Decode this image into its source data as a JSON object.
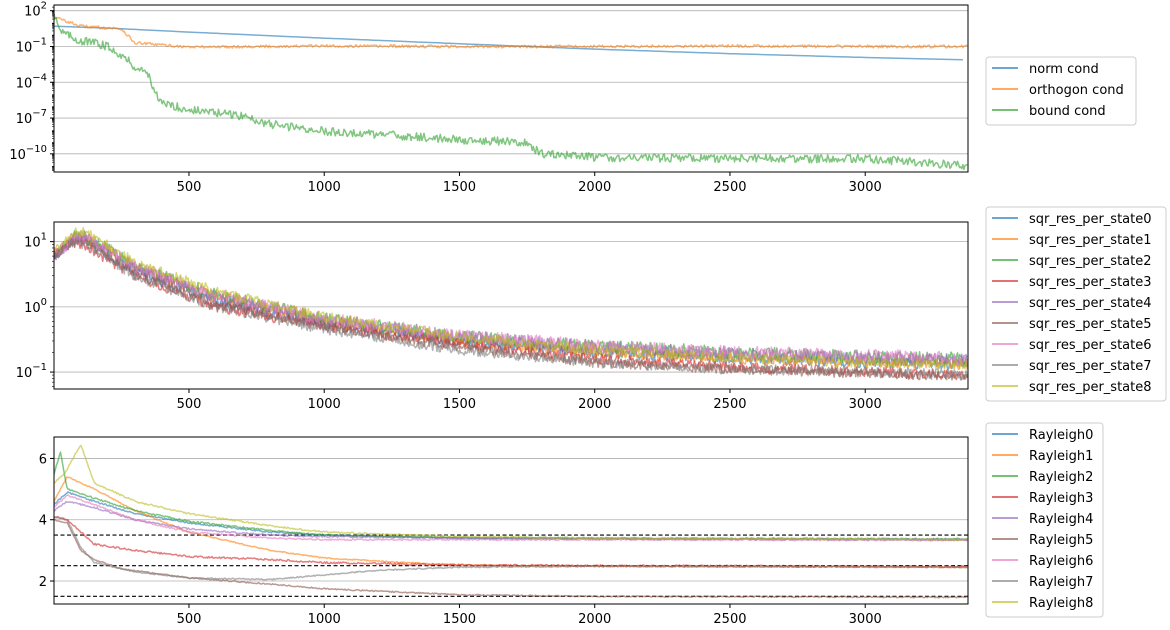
{
  "chart_data": [
    {
      "type": "line",
      "yscale": "log",
      "xlim": [
        1,
        3380
      ],
      "ylim": [
        3e-12,
        300
      ],
      "grid": "y",
      "legend_position": "right",
      "x_ticks": [
        {
          "value": 500,
          "label": "500"
        },
        {
          "value": 1000,
          "label": "1000"
        },
        {
          "value": 1500,
          "label": "1500"
        },
        {
          "value": 2000,
          "label": "2000"
        },
        {
          "value": 2500,
          "label": "2500"
        },
        {
          "value": 3000,
          "label": "3000"
        }
      ],
      "y_ticks": [
        {
          "value": 100,
          "base": "10",
          "exp": "2"
        },
        {
          "value": 0.1,
          "base": "10",
          "exp": "−1"
        },
        {
          "value": 0.0001,
          "base": "10",
          "exp": "−4"
        },
        {
          "value": 1e-07,
          "base": "10",
          "exp": "−7"
        },
        {
          "value": 1e-10,
          "base": "10",
          "exp": "−10"
        }
      ],
      "series": [
        {
          "name": "norm cond",
          "color": "#1f77b4",
          "noise": 0.0,
          "x": [
            1,
            200,
            500,
            1000,
            1500,
            2000,
            2500,
            3000,
            3380
          ],
          "y": [
            5,
            3.5,
            1.6,
            0.5,
            0.17,
            0.06,
            0.025,
            0.012,
            0.0075
          ]
        },
        {
          "name": "orthogon cond",
          "color": "#ff7f0e",
          "noise": 0.12,
          "x": [
            1,
            100,
            250,
            300,
            500,
            1000,
            1500,
            2000,
            2500,
            3000,
            3380
          ],
          "y": [
            30,
            5,
            3,
            0.2,
            0.09,
            0.11,
            0.1,
            0.1,
            0.11,
            0.1,
            0.1
          ]
        },
        {
          "name": "bound cond",
          "color": "#2ca02c",
          "noise": 0.35,
          "x": [
            1,
            25,
            60,
            100,
            150,
            200,
            250,
            300,
            350,
            390,
            500,
            700,
            800,
            1000,
            1300,
            1500,
            1750,
            1800,
            2000,
            2500,
            3000,
            3380
          ],
          "y": [
            80,
            2,
            0.7,
            0.3,
            0.2,
            0.1,
            0.02,
            0.002,
            0.0005,
            2e-06,
            5e-07,
            1.5e-07,
            3e-08,
            8e-09,
            3e-09,
            1.5e-09,
            1e-09,
            1e-10,
            5e-11,
            4e-11,
            4e-11,
            1e-11
          ]
        }
      ]
    },
    {
      "type": "line",
      "yscale": "log",
      "xlim": [
        1,
        3380
      ],
      "ylim": [
        0.055,
        20
      ],
      "grid": "y",
      "legend_position": "right",
      "x_ticks": [
        {
          "value": 500,
          "label": "500"
        },
        {
          "value": 1000,
          "label": "1000"
        },
        {
          "value": 1500,
          "label": "1500"
        },
        {
          "value": 2000,
          "label": "2000"
        },
        {
          "value": 2500,
          "label": "2500"
        },
        {
          "value": 3000,
          "label": "3000"
        }
      ],
      "y_ticks": [
        {
          "value": 10,
          "base": "10",
          "exp": "1"
        },
        {
          "value": 1,
          "base": "10",
          "exp": "0"
        },
        {
          "value": 0.1,
          "base": "10",
          "exp": "−1"
        }
      ],
      "series": [
        {
          "name": "sqr_res_per_state0",
          "color": "#1f77b4",
          "noise": 0.08,
          "x": [
            1,
            80,
            120,
            300,
            600,
            1000,
            1500,
            2000,
            2500,
            3000,
            3380
          ],
          "y": [
            6,
            11,
            10.5,
            3.5,
            1.2,
            0.55,
            0.3,
            0.2,
            0.16,
            0.14,
            0.13
          ]
        },
        {
          "name": "sqr_res_per_state1",
          "color": "#ff7f0e",
          "noise": 0.08,
          "x": [
            1,
            80,
            120,
            300,
            600,
            1000,
            1500,
            2000,
            2500,
            3000,
            3380
          ],
          "y": [
            6,
            12,
            11,
            4,
            1.4,
            0.6,
            0.3,
            0.2,
            0.16,
            0.14,
            0.13
          ]
        },
        {
          "name": "sqr_res_per_state2",
          "color": "#2ca02c",
          "noise": 0.1,
          "x": [
            1,
            80,
            120,
            300,
            600,
            1000,
            1500,
            2000,
            2500,
            3000,
            3380
          ],
          "y": [
            6,
            12,
            12,
            4.2,
            1.5,
            0.65,
            0.35,
            0.25,
            0.2,
            0.17,
            0.16
          ]
        },
        {
          "name": "sqr_res_per_state3",
          "color": "#d62728",
          "noise": 0.08,
          "x": [
            1,
            70,
            120,
            300,
            600,
            1000,
            1500,
            2000,
            2500,
            3000,
            3380
          ],
          "y": [
            6,
            10,
            8.5,
            3,
            1.0,
            0.5,
            0.27,
            0.16,
            0.12,
            0.1,
            0.09
          ]
        },
        {
          "name": "sqr_res_per_state4",
          "color": "#9467bd",
          "noise": 0.1,
          "x": [
            1,
            80,
            120,
            300,
            600,
            1000,
            1500,
            2000,
            2500,
            3000,
            3380
          ],
          "y": [
            6,
            11.5,
            11,
            4,
            1.4,
            0.6,
            0.35,
            0.24,
            0.19,
            0.16,
            0.15
          ]
        },
        {
          "name": "sqr_res_per_state5",
          "color": "#8c564b",
          "noise": 0.07,
          "x": [
            1,
            70,
            120,
            300,
            600,
            1000,
            1500,
            2000,
            2500,
            3000,
            3380
          ],
          "y": [
            6,
            10.5,
            9.5,
            3.2,
            1.1,
            0.5,
            0.24,
            0.14,
            0.11,
            0.095,
            0.085
          ]
        },
        {
          "name": "sqr_res_per_state6",
          "color": "#e377c2",
          "noise": 0.1,
          "x": [
            1,
            80,
            120,
            300,
            600,
            1000,
            1500,
            2000,
            2500,
            3000,
            3380
          ],
          "y": [
            6,
            12,
            11.5,
            4.2,
            1.5,
            0.65,
            0.36,
            0.25,
            0.2,
            0.18,
            0.16
          ]
        },
        {
          "name": "sqr_res_per_state7",
          "color": "#7f7f7f",
          "noise": 0.08,
          "x": [
            1,
            70,
            120,
            300,
            600,
            1000,
            1500,
            2000,
            2500,
            3000,
            3380
          ],
          "y": [
            6,
            10,
            9,
            3,
            1.0,
            0.45,
            0.22,
            0.14,
            0.11,
            0.1,
            0.09
          ]
        },
        {
          "name": "sqr_res_per_state8",
          "color": "#bcbd22",
          "noise": 0.08,
          "x": [
            1,
            80,
            120,
            300,
            600,
            1000,
            1500,
            2000,
            2500,
            3000,
            3380
          ],
          "y": [
            7,
            14,
            14,
            4.8,
            1.7,
            0.7,
            0.35,
            0.22,
            0.17,
            0.14,
            0.13
          ]
        }
      ]
    },
    {
      "type": "line",
      "yscale": "linear",
      "xlim": [
        1,
        3380
      ],
      "ylim": [
        1.25,
        6.7
      ],
      "grid": "y",
      "legend_position": "right",
      "reference_lines": [
        3.5,
        2.5,
        1.5
      ],
      "x_ticks": [
        {
          "value": 500,
          "label": "500"
        },
        {
          "value": 1000,
          "label": "1000"
        },
        {
          "value": 1500,
          "label": "1500"
        },
        {
          "value": 2000,
          "label": "2000"
        },
        {
          "value": 2500,
          "label": "2500"
        },
        {
          "value": 3000,
          "label": "3000"
        }
      ],
      "y_ticks": [
        {
          "value": 6,
          "label": "6"
        },
        {
          "value": 4,
          "label": "4"
        },
        {
          "value": 2,
          "label": "2"
        }
      ],
      "series": [
        {
          "name": "Rayleigh0",
          "color": "#1f77b4",
          "noise": 0.025,
          "x": [
            1,
            50,
            150,
            300,
            500,
            800,
            1000,
            1500,
            2000,
            3380
          ],
          "y": [
            4.5,
            4.9,
            4.6,
            4.2,
            3.9,
            3.6,
            3.5,
            3.4,
            3.38,
            3.35
          ]
        },
        {
          "name": "Rayleigh1",
          "color": "#ff7f0e",
          "noise": 0.02,
          "x": [
            1,
            50,
            150,
            300,
            500,
            800,
            1000,
            1300,
            1500,
            2000,
            3380
          ],
          "y": [
            4.6,
            5.4,
            5.0,
            4.3,
            3.6,
            3.0,
            2.75,
            2.6,
            2.52,
            2.48,
            2.45
          ]
        },
        {
          "name": "Rayleigh2",
          "color": "#2ca02c",
          "noise": 0.025,
          "x": [
            1,
            25,
            50,
            150,
            300,
            500,
            800,
            1000,
            1500,
            2000,
            3380
          ],
          "y": [
            5.5,
            6.2,
            5.0,
            4.7,
            4.3,
            3.95,
            3.65,
            3.5,
            3.42,
            3.4,
            3.37
          ]
        },
        {
          "name": "Rayleigh3",
          "color": "#d62728",
          "noise": 0.03,
          "x": [
            1,
            50,
            150,
            300,
            500,
            800,
            1000,
            1500,
            2000,
            3380
          ],
          "y": [
            4.1,
            4.0,
            3.2,
            3.0,
            2.8,
            2.7,
            2.6,
            2.52,
            2.5,
            2.47
          ]
        },
        {
          "name": "Rayleigh4",
          "color": "#9467bd",
          "noise": 0.025,
          "x": [
            1,
            50,
            150,
            300,
            500,
            800,
            1000,
            1500,
            2000,
            3380
          ],
          "y": [
            4.3,
            4.6,
            4.4,
            4.0,
            3.7,
            3.5,
            3.45,
            3.4,
            3.38,
            3.35
          ]
        },
        {
          "name": "Rayleigh5",
          "color": "#8c564b",
          "noise": 0.02,
          "x": [
            1,
            50,
            100,
            150,
            250,
            500,
            800,
            1000,
            1500,
            2000,
            3380
          ],
          "y": [
            4.0,
            3.9,
            3.0,
            2.7,
            2.4,
            2.1,
            1.9,
            1.75,
            1.55,
            1.5,
            1.47
          ]
        },
        {
          "name": "Rayleigh6",
          "color": "#e377c2",
          "noise": 0.025,
          "x": [
            1,
            50,
            150,
            300,
            500,
            800,
            1000,
            1500,
            2000,
            3380
          ],
          "y": [
            4.4,
            4.8,
            4.5,
            4.0,
            3.6,
            3.4,
            3.35,
            3.35,
            3.35,
            3.33
          ]
        },
        {
          "name": "Rayleigh7",
          "color": "#7f7f7f",
          "noise": 0.02,
          "x": [
            1,
            50,
            100,
            150,
            300,
            500,
            800,
            1000,
            1200,
            1500,
            2000,
            3380
          ],
          "y": [
            4.1,
            4.0,
            3.1,
            2.6,
            2.3,
            2.1,
            2.05,
            2.2,
            2.35,
            2.45,
            2.48,
            2.45
          ]
        },
        {
          "name": "Rayleigh8",
          "color": "#bcbd22",
          "noise": 0.025,
          "x": [
            1,
            40,
            100,
            150,
            300,
            500,
            800,
            1000,
            1500,
            2000,
            3380
          ],
          "y": [
            5.2,
            5.5,
            6.45,
            5.2,
            4.6,
            4.2,
            3.8,
            3.6,
            3.45,
            3.4,
            3.35
          ]
        }
      ]
    }
  ]
}
